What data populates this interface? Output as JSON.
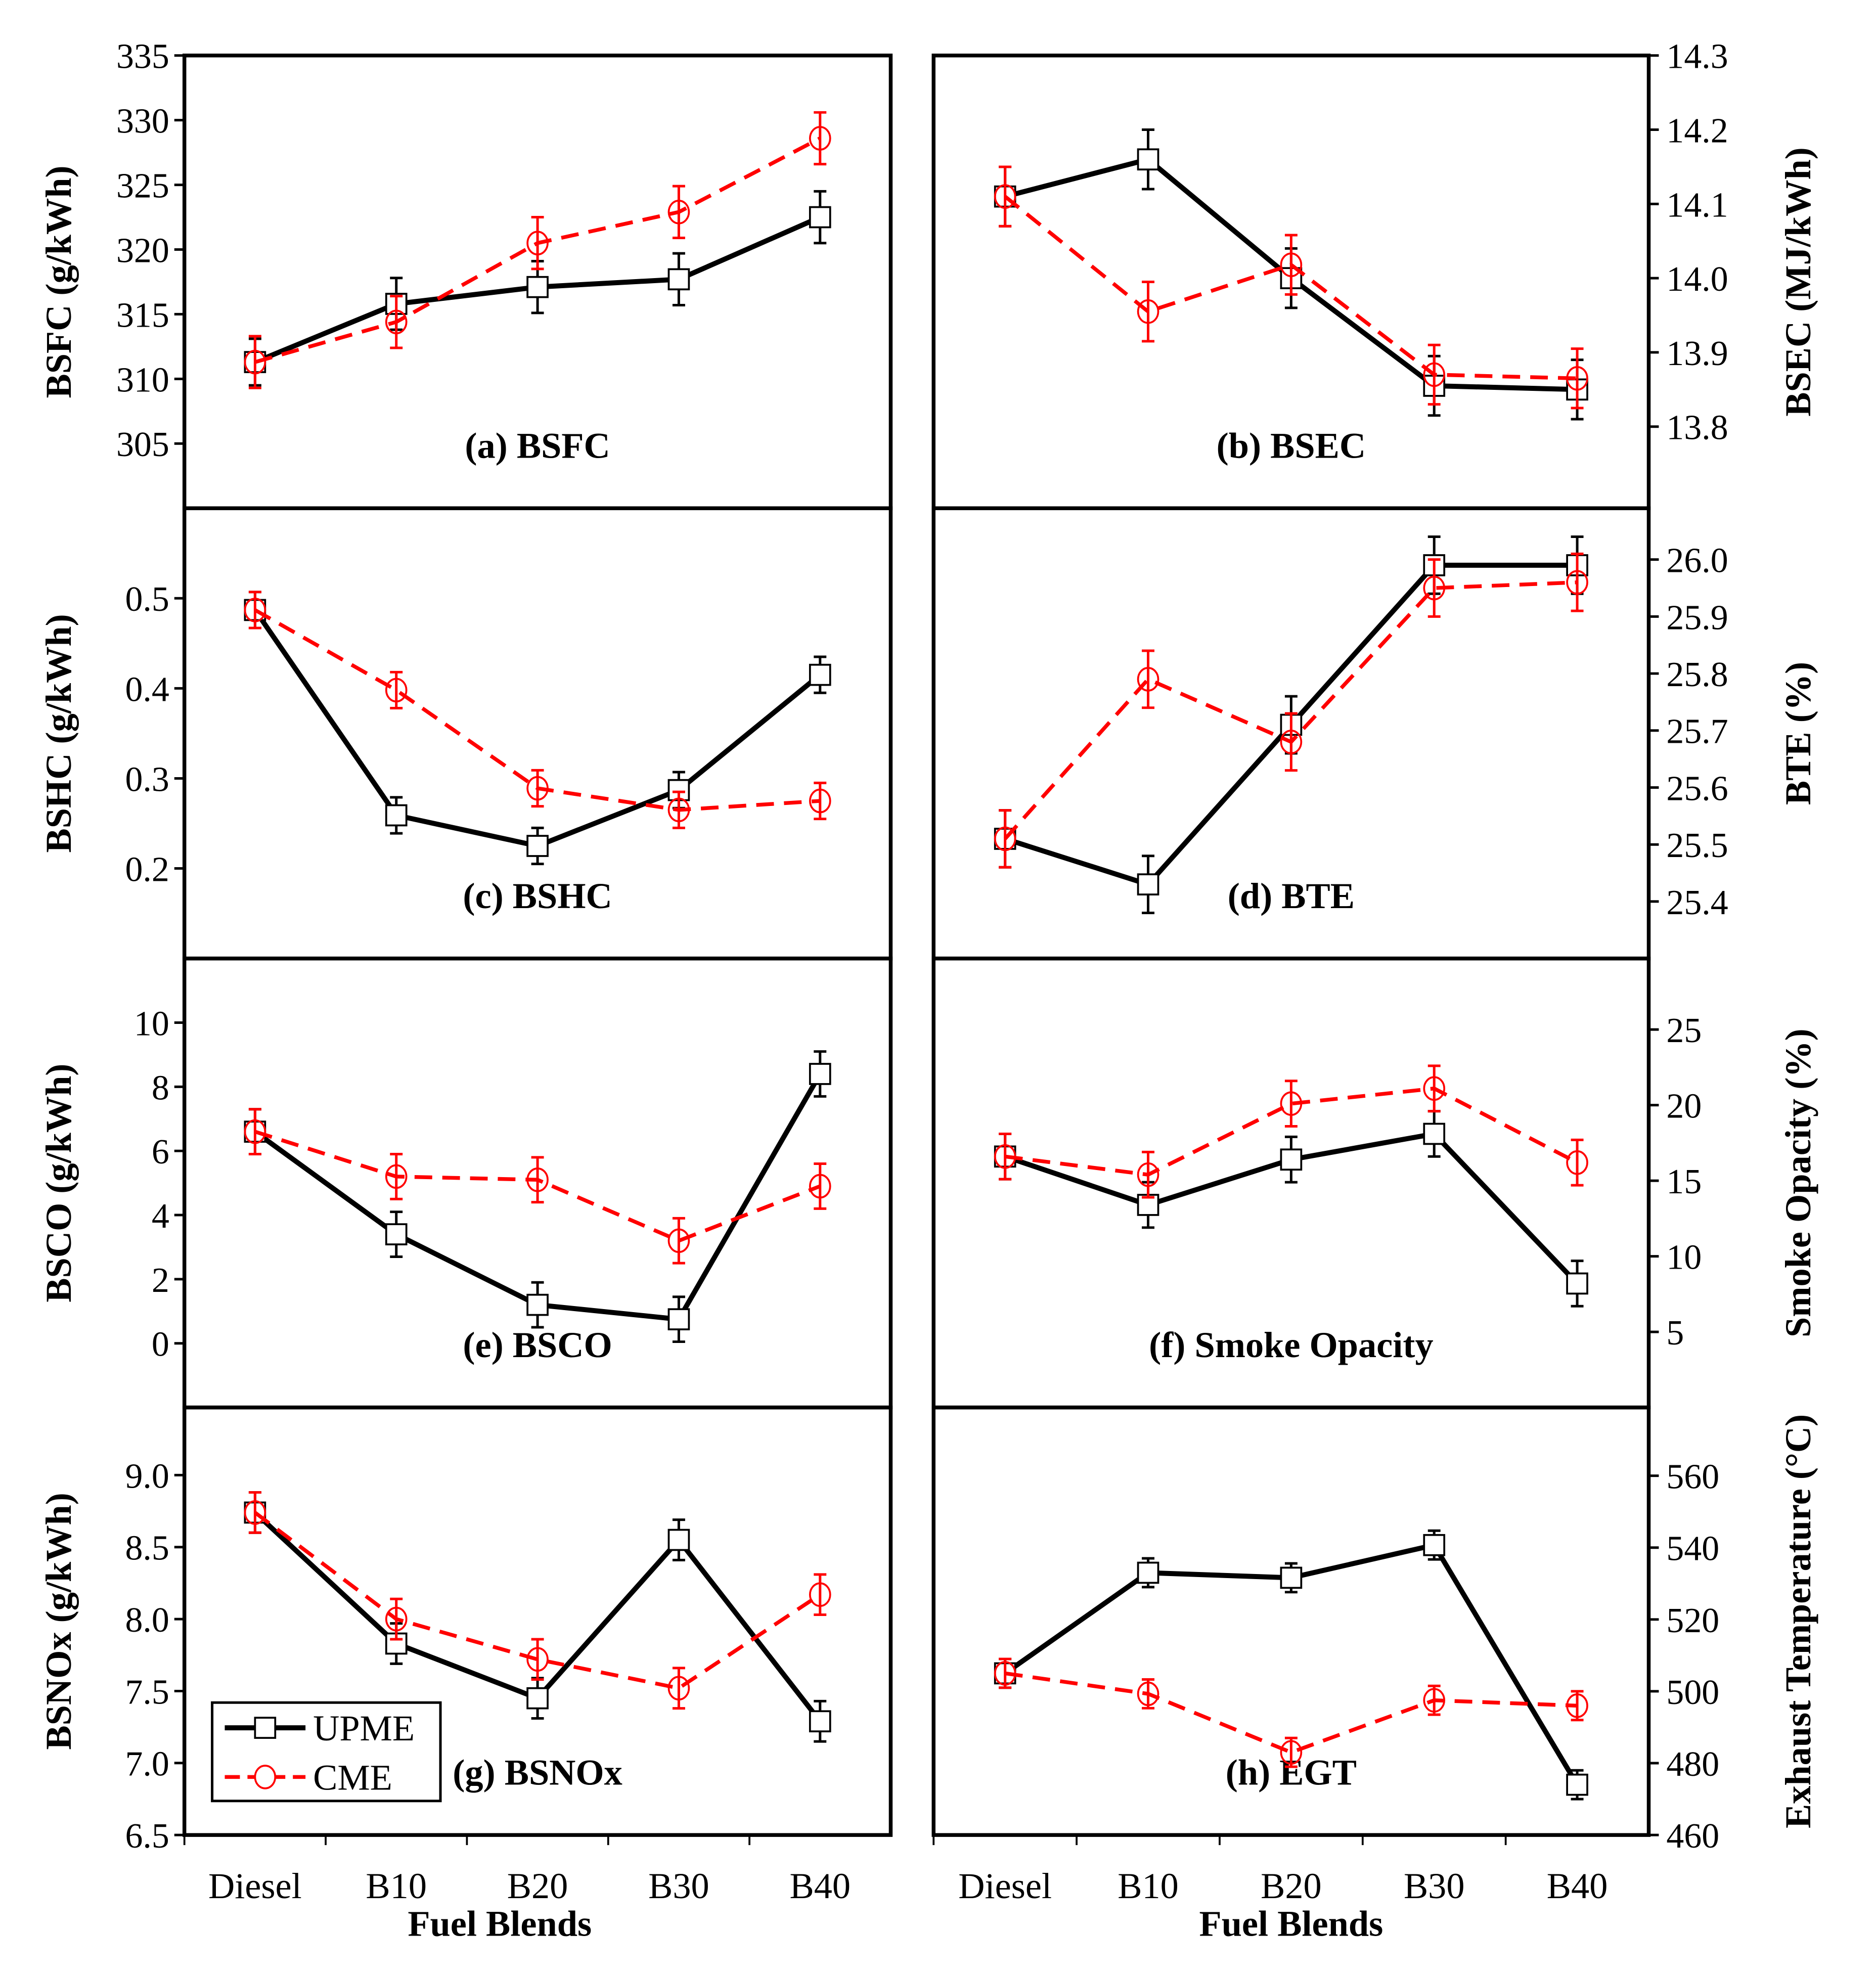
{
  "chart_data": [
    {
      "type": "line",
      "title": "(a) BSFC",
      "ylabel": "BSFC (g/kWh)",
      "ylim": [
        300,
        335
      ],
      "ticks": [
        305,
        310,
        315,
        320,
        325,
        330,
        335
      ],
      "axis": "left",
      "categories": [
        "Diesel",
        "B10",
        "B20",
        "B30",
        "B40"
      ],
      "series": [
        {
          "name": "UPME",
          "values": [
            311.3,
            315.8,
            317.1,
            317.7,
            322.5
          ],
          "error": [
            1.8,
            2,
            2,
            2,
            2
          ]
        },
        {
          "name": "CME",
          "values": [
            311.3,
            314.4,
            320.5,
            322.9,
            328.6
          ],
          "error": [
            2,
            2,
            2,
            2,
            2
          ]
        }
      ]
    },
    {
      "type": "line",
      "title": "(b) BSEC",
      "ylabel": "BSEC (MJ/kWh)",
      "ylim": [
        13.69,
        14.3
      ],
      "ticks": [
        "13.8",
        "13.9",
        "14.0",
        "14.1",
        "14.2",
        "14.3"
      ],
      "axis": "right",
      "categories": [
        "Diesel",
        "B10",
        "B20",
        "B30",
        "B40"
      ],
      "series": [
        {
          "name": "UPME",
          "values": [
            14.11,
            14.16,
            14.0,
            13.855,
            13.85
          ],
          "error": [
            0.04,
            0.04,
            0.04,
            0.04,
            0.04
          ]
        },
        {
          "name": "CME",
          "values": [
            14.11,
            13.955,
            14.018,
            13.87,
            13.865
          ],
          "error": [
            0.04,
            0.04,
            0.04,
            0.04,
            0.04
          ]
        }
      ]
    },
    {
      "type": "line",
      "title": "(c) BSHC",
      "ylabel": "BSHC (g/kWh)",
      "ylim": [
        0.1,
        0.6
      ],
      "ticks": [
        "0.2",
        "0.3",
        "0.4",
        "0.5"
      ],
      "axis": "left",
      "categories": [
        "Diesel",
        "B10",
        "B20",
        "B30",
        "B40"
      ],
      "series": [
        {
          "name": "UPME",
          "values": [
            0.487,
            0.259,
            0.225,
            0.287,
            0.415
          ],
          "error": [
            0.02,
            0.02,
            0.02,
            0.02,
            0.02
          ]
        },
        {
          "name": "CME",
          "values": [
            0.487,
            0.398,
            0.289,
            0.265,
            0.275
          ],
          "error": [
            0.02,
            0.02,
            0.02,
            0.02,
            0.02
          ]
        }
      ]
    },
    {
      "type": "line",
      "title": "(d) BTE",
      "ylabel": "BTE (%)",
      "ylim": [
        25.3,
        26.09
      ],
      "ticks": [
        "25.4",
        "25.5",
        "25.6",
        "25.7",
        "25.8",
        "25.9",
        "26.0"
      ],
      "axis": "right",
      "categories": [
        "Diesel",
        "B10",
        "B20",
        "B30",
        "B40"
      ],
      "series": [
        {
          "name": "UPME",
          "values": [
            25.51,
            25.43,
            25.71,
            25.99,
            25.99
          ],
          "error": [
            0.05,
            0.05,
            0.05,
            0.05,
            0.05
          ]
        },
        {
          "name": "CME",
          "values": [
            25.51,
            25.79,
            25.68,
            25.95,
            25.96
          ],
          "error": [
            0.05,
            0.05,
            0.05,
            0.05,
            0.05
          ]
        }
      ]
    },
    {
      "type": "line",
      "title": "(e) BSCO",
      "ylabel": "BSCO (g/kWh)",
      "ylim": [
        -2,
        12
      ],
      "ticks": [
        0,
        2,
        4,
        6,
        8,
        10
      ],
      "axis": "left",
      "categories": [
        "Diesel",
        "B10",
        "B20",
        "B30",
        "B40"
      ],
      "series": [
        {
          "name": "UPME",
          "values": [
            6.6,
            3.4,
            1.2,
            0.75,
            8.4
          ],
          "error": [
            0.7,
            0.7,
            0.7,
            0.7,
            0.7
          ]
        },
        {
          "name": "CME",
          "values": [
            6.6,
            5.2,
            5.1,
            3.2,
            4.9
          ],
          "error": [
            0.7,
            0.7,
            0.7,
            0.7,
            0.7
          ]
        }
      ]
    },
    {
      "type": "line",
      "title": "(f) Smoke Opacity",
      "ylabel": "Smoke Opacity (%)",
      "ylim": [
        0,
        29.7
      ],
      "ticks": [
        5,
        10,
        15,
        20,
        25
      ],
      "axis": "right",
      "categories": [
        "Diesel",
        "B10",
        "B20",
        "B30",
        "B40"
      ],
      "series": [
        {
          "name": "UPME",
          "values": [
            16.6,
            13.4,
            16.4,
            18.1,
            8.2
          ],
          "error": [
            1.5,
            1.5,
            1.5,
            1.5,
            1.5
          ]
        },
        {
          "name": "CME",
          "values": [
            16.6,
            15.4,
            20.1,
            21.1,
            16.2
          ],
          "error": [
            1.5,
            1.5,
            1.5,
            1.5,
            1.5
          ]
        }
      ]
    },
    {
      "type": "line",
      "title": "(g) BSNOx",
      "ylabel": "BSNOx (g/kWh)",
      "ylim": [
        6.5,
        9.47
      ],
      "ticks": [
        "6.5",
        "7.0",
        "7.5",
        "8.0",
        "8.5",
        "9.0"
      ],
      "axis": "left",
      "categories": [
        "Diesel",
        "B10",
        "B20",
        "B30",
        "B40"
      ],
      "series": [
        {
          "name": "UPME",
          "values": [
            8.74,
            7.83,
            7.45,
            8.55,
            7.29
          ],
          "error": [
            0.14,
            0.14,
            0.14,
            0.14,
            0.14
          ]
        },
        {
          "name": "CME",
          "values": [
            8.74,
            8.0,
            7.72,
            7.52,
            8.17
          ],
          "error": [
            0.14,
            0.14,
            0.14,
            0.14,
            0.14
          ]
        }
      ]
    },
    {
      "type": "line",
      "title": "(h) EGT",
      "ylabel": "Exhaust Temperature (°C)",
      "ylim": [
        460,
        579
      ],
      "ticks": [
        460,
        480,
        500,
        520,
        540,
        560
      ],
      "axis": "right",
      "categories": [
        "Diesel",
        "B10",
        "B20",
        "B30",
        "B40"
      ],
      "series": [
        {
          "name": "UPME",
          "values": [
            505,
            533,
            531.6,
            540.7,
            474
          ],
          "error": [
            4,
            4,
            4,
            4,
            4
          ]
        },
        {
          "name": "CME",
          "values": [
            505,
            499.3,
            483,
            497.5,
            496
          ],
          "error": [
            4,
            4,
            4,
            4,
            4
          ]
        }
      ]
    }
  ],
  "xlabel": "Fuel Blends",
  "legend": [
    "UPME",
    "CME"
  ],
  "colors": {
    "UPME": "#000000",
    "CME": "#ff0000"
  }
}
